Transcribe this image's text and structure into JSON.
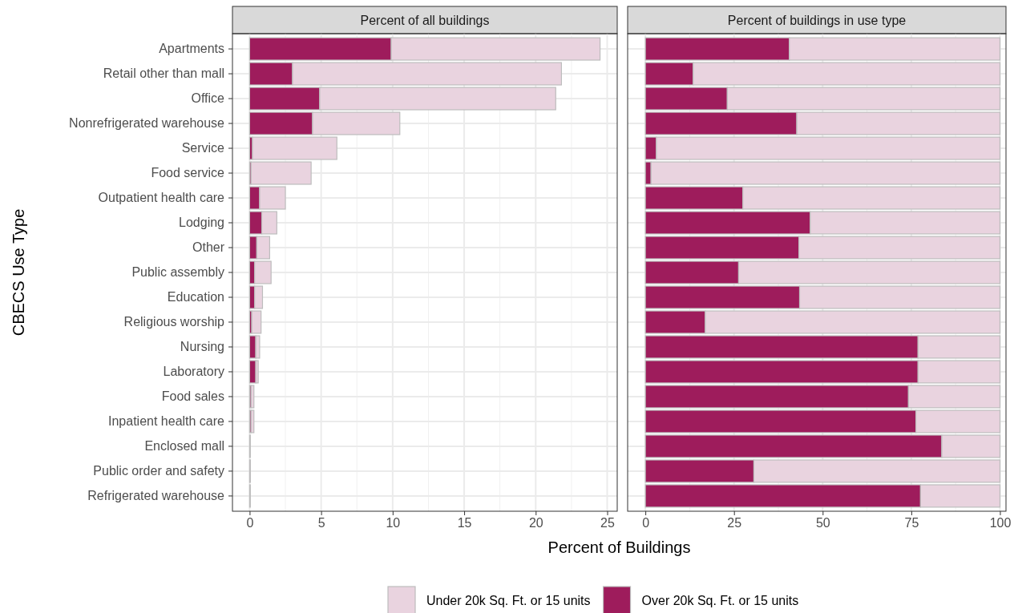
{
  "chart_data": [
    {
      "type": "bar",
      "orientation": "horizontal",
      "stacked": true,
      "title": "Percent of all buildings",
      "ylabel": "CBECS Use Type",
      "xlabel": "Percent of Buildings",
      "categories": [
        "Apartments",
        "Retail other than mall",
        "Office",
        "Nonrefrigerated warehouse",
        "Service",
        "Food service",
        "Outpatient health care",
        "Lodging",
        "Other",
        "Public assembly",
        "Education",
        "Religious worship",
        "Nursing",
        "Laboratory",
        "Food sales",
        "Inpatient health care",
        "Enclosed mall",
        "Public order and safety",
        "Refrigerated warehouse"
      ],
      "series": [
        {
          "name": "Over 20k Sq. Ft. or 15 units",
          "color": "#9e1c5c",
          "values": [
            9.9,
            3.0,
            4.9,
            4.4,
            0.2,
            0.1,
            0.7,
            0.85,
            0.5,
            0.35,
            0.35,
            0.15,
            0.43,
            0.43,
            0.1,
            0.1,
            null,
            0.02,
            null
          ]
        },
        {
          "name": "Under 20k Sq. Ft. or 15 units",
          "color": "#e9d3df",
          "values": [
            14.6,
            18.8,
            16.5,
            6.1,
            5.9,
            4.2,
            1.8,
            1.05,
            0.9,
            1.15,
            0.55,
            0.65,
            0.27,
            0.17,
            0.2,
            0.2,
            0.05,
            0.03,
            0.05
          ]
        }
      ],
      "xlim": [
        -1.2,
        25.7
      ],
      "xticks": [
        0,
        5,
        10,
        15,
        20,
        25
      ],
      "grid": true,
      "legend": "bottom"
    },
    {
      "type": "bar",
      "orientation": "horizontal",
      "stacked": true,
      "title": "Percent of buildings in use type",
      "categories": [
        null,
        null,
        null,
        null,
        null,
        null,
        null,
        null,
        null,
        null,
        null,
        null,
        null,
        null,
        null,
        null,
        null,
        null,
        null
      ],
      "series": [
        {
          "color": "#9e1c5c",
          "values": [
            40.6,
            13.5,
            23.1,
            42.7,
            3.1,
            1.6,
            27.5,
            46.5,
            43.3,
            26.3,
            43.5,
            16.9,
            76.9,
            76.9,
            74.2,
            76.3,
            83.6,
            30.6,
            77.6
          ]
        },
        {
          "color": "#e9d3df",
          "values": [
            59.4,
            86.5,
            76.9,
            57.3,
            96.9,
            98.4,
            72.5,
            53.5,
            56.7,
            73.7,
            56.5,
            83.1,
            23.1,
            23.1,
            25.8,
            23.7,
            16.4,
            69.4,
            22.4
          ]
        }
      ],
      "xlim": [
        -5,
        101.7
      ],
      "xticks": [
        0,
        25,
        50,
        75,
        100
      ],
      "grid": true,
      "tick_labels": "x"
    }
  ]
}
